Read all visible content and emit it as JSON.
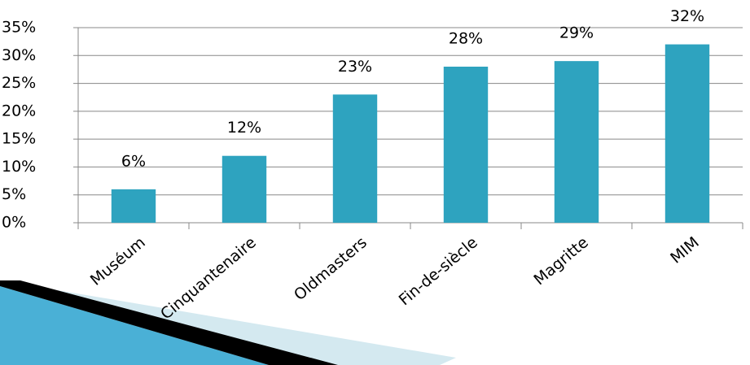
{
  "chart_data": {
    "type": "bar",
    "categories": [
      "Muséum",
      "Cinquantenaire",
      "Oldmasters",
      "Fin-de-siècle",
      "Magritte",
      "MIM"
    ],
    "values": [
      6,
      12,
      23,
      28,
      29,
      32
    ],
    "value_labels": [
      "6%",
      "12%",
      "23%",
      "28%",
      "29%",
      "32%"
    ],
    "color": "#2ea3bf",
    "ylim": [
      0,
      35
    ],
    "yticks": [
      {
        "value": 0,
        "label": "0%"
      },
      {
        "value": 5,
        "label": "5%"
      },
      {
        "value": 10,
        "label": "10%"
      },
      {
        "value": 15,
        "label": "15%"
      },
      {
        "value": 20,
        "label": "20%"
      },
      {
        "value": 25,
        "label": "25%"
      },
      {
        "value": 30,
        "label": "30%"
      },
      {
        "value": 35,
        "label": "35%"
      }
    ],
    "grid": true
  }
}
